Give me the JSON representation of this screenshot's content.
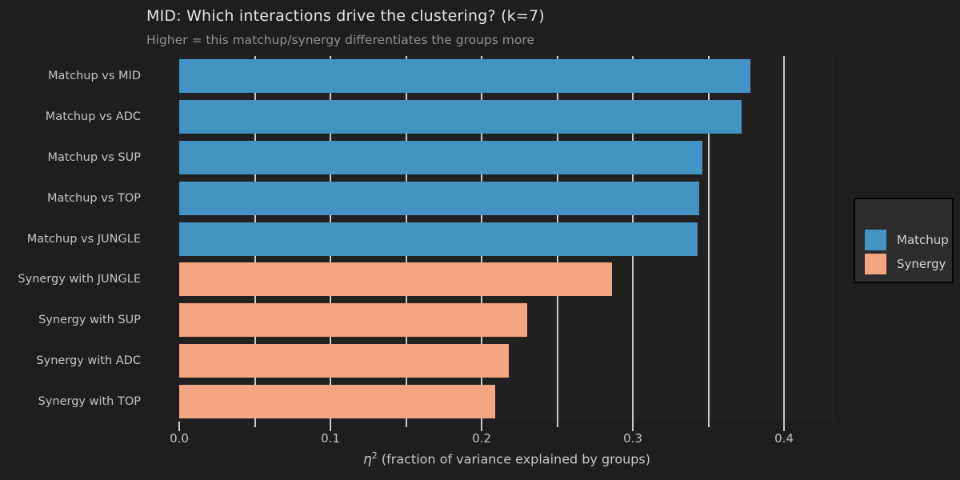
{
  "chart_data": {
    "type": "bar",
    "orientation": "horizontal",
    "title": "MID: Which interactions drive the clustering? (k=7)",
    "subtitle": "Higher = this matchup/synergy differentiates the groups more",
    "xlabel_parts": {
      "eta": "η",
      "sup": "2",
      "rest": " (fraction of variance explained by groups)"
    },
    "xlabel_plain": "η2 (fraction of variance explained by groups)",
    "categories": [
      "Matchup vs MID",
      "Matchup vs ADC",
      "Matchup vs SUP",
      "Matchup vs TOP",
      "Matchup vs JUNGLE",
      "Synergy with JUNGLE",
      "Synergy with SUP",
      "Synergy with ADC",
      "Synergy with TOP"
    ],
    "rows": [
      {
        "label": "Matchup vs MID",
        "series": "Matchup",
        "value": 0.378
      },
      {
        "label": "Matchup vs ADC",
        "series": "Matchup",
        "value": 0.372
      },
      {
        "label": "Matchup vs SUP",
        "series": "Matchup",
        "value": 0.346
      },
      {
        "label": "Matchup vs TOP",
        "series": "Matchup",
        "value": 0.344
      },
      {
        "label": "Matchup vs JUNGLE",
        "series": "Matchup",
        "value": 0.343
      },
      {
        "label": "Synergy with JUNGLE",
        "series": "Synergy",
        "value": 0.286
      },
      {
        "label": "Synergy with SUP",
        "series": "Synergy",
        "value": 0.23
      },
      {
        "label": "Synergy with ADC",
        "series": "Synergy",
        "value": 0.218
      },
      {
        "label": "Synergy with TOP",
        "series": "Synergy",
        "value": 0.209
      }
    ],
    "series": [
      {
        "name": "Matchup",
        "color": "#4393c3"
      },
      {
        "name": "Synergy",
        "color": "#f4a582"
      }
    ],
    "x_axis": {
      "min": 0,
      "max": 0.4333,
      "ticks": [
        {
          "value": 0.0,
          "label": "0.0"
        },
        {
          "value": 0.05,
          "label": ""
        },
        {
          "value": 0.1,
          "label": "0.1"
        },
        {
          "value": 0.15,
          "label": ""
        },
        {
          "value": 0.2,
          "label": "0.2"
        },
        {
          "value": 0.25,
          "label": ""
        },
        {
          "value": 0.3,
          "label": "0.3"
        },
        {
          "value": 0.35,
          "label": ""
        },
        {
          "value": 0.4,
          "label": "0.4"
        }
      ],
      "grid_values": [
        0.05,
        0.1,
        0.15,
        0.2,
        0.25,
        0.3,
        0.35,
        0.4
      ],
      "grid": true
    },
    "legend": {
      "position": "right-outside",
      "entries": [
        "Matchup",
        "Synergy"
      ]
    },
    "colors": {
      "background": "#1e1e1e",
      "plot_background": "#212121",
      "gridline": "#e6e6e6",
      "title_text": "#e4e4e4",
      "subtitle_text": "#929292",
      "tick_text": "#c4c4c4",
      "legend_background": "#2c2c2c",
      "matchup_bar": "#4393c3",
      "synergy_bar": "#f4a582"
    }
  }
}
